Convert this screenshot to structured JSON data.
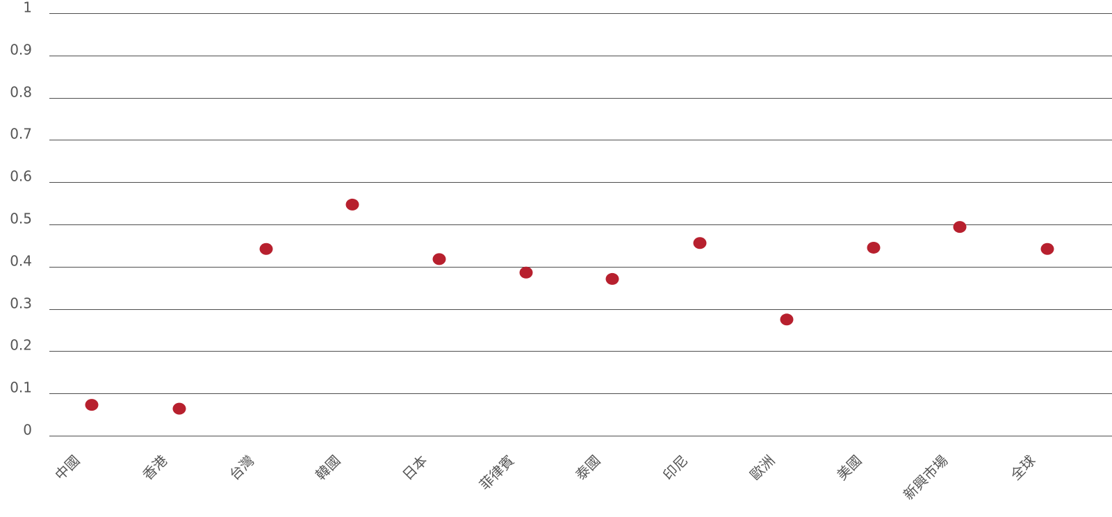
{
  "chart_data": {
    "type": "scatter",
    "title": "",
    "xlabel": "",
    "ylabel": "",
    "ylim": [
      0,
      1
    ],
    "yticks": [
      "0",
      "0.1",
      "0.2",
      "0.3",
      "0.4",
      "0.5",
      "0.6",
      "0.7",
      "0.8",
      "0.9",
      "1"
    ],
    "grid": true,
    "legend": "none",
    "point_color": "#b7202e",
    "grid_color": "#4d4d4d",
    "tick_color": "#555555",
    "categories": [
      "中國",
      "香港",
      "台灣",
      "韓國",
      "日本",
      "菲律賓",
      "泰國",
      "印尼",
      "歐洲",
      "美國",
      "新興市場",
      "全球"
    ],
    "values": [
      0.073,
      0.064,
      0.442,
      0.547,
      0.418,
      0.386,
      0.371,
      0.456,
      0.275,
      0.445,
      0.494,
      0.442
    ]
  }
}
